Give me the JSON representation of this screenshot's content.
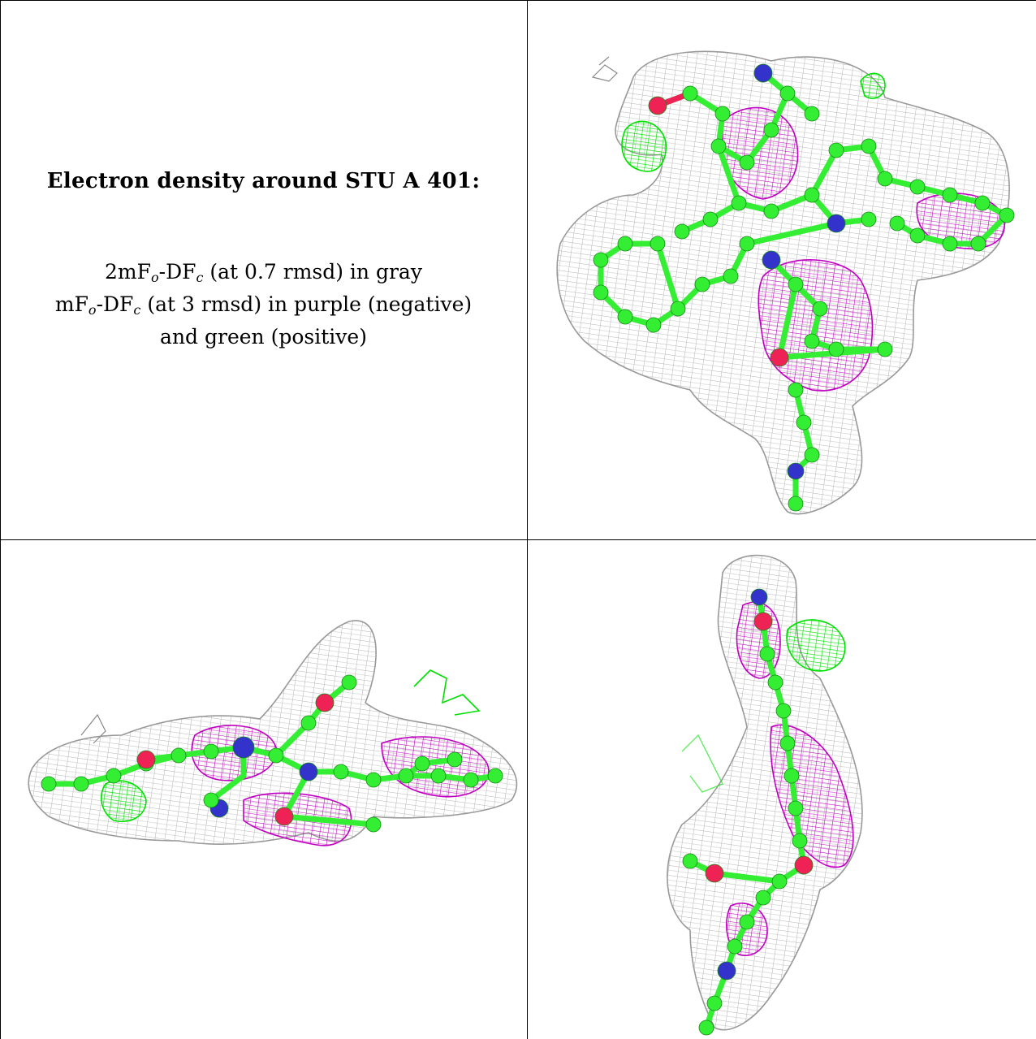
{
  "caption": {
    "title": "Electron density around STU A 401:",
    "legend": [
      {
        "base": "2mF",
        "sub1": "o",
        "mid": "-DF",
        "sub2": "c",
        "rest": " (at 0.7 rmsd) in gray"
      },
      {
        "base": "mF",
        "sub1": "o",
        "mid": "-DF",
        "sub2": "c",
        "rest": " (at 3 rmsd) in purple (negative)"
      },
      {
        "text": "and green (positive)"
      }
    ]
  },
  "colors": {
    "mesh_gray": "#b4b4b4",
    "mesh_purple": "#c000c0",
    "mesh_green": "#00e000",
    "carbon": "#33ee33",
    "nitrogen": "#3333cc",
    "oxygen": "#ee2255"
  },
  "panels": [
    "view-top-right",
    "view-bottom-left",
    "view-bottom-right"
  ]
}
